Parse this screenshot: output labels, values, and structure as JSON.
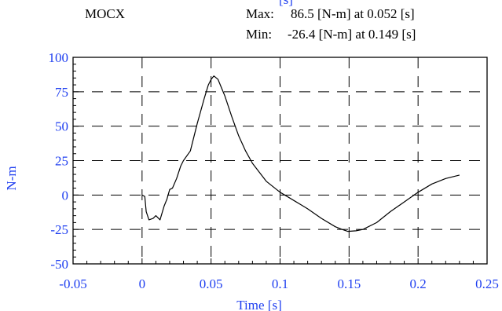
{
  "chart_data": {
    "type": "line",
    "title": "MOCX",
    "cropped_top_label": "[s]",
    "xlabel": "Time [s]",
    "ylabel": "N-m",
    "xlim": [
      -0.05,
      0.25
    ],
    "ylim": [
      -50,
      100
    ],
    "x_ticks": [
      -0.05,
      0,
      0.05,
      0.1,
      0.15,
      0.2,
      0.25
    ],
    "x_tick_labels": [
      "-0.05",
      "0",
      "0.05",
      "0.1",
      "0.15",
      "0.2",
      "0.25"
    ],
    "y_ticks": [
      -50,
      -25,
      0,
      25,
      50,
      75,
      100
    ],
    "y_tick_labels": [
      "-50",
      "-25",
      "0",
      "25",
      "50",
      "75",
      "100"
    ],
    "grid": "dashed",
    "stats": {
      "max_label": "Max:",
      "max_text": "86.5 [N-m] at 0.052 [s]",
      "min_label": "Min:",
      "min_text": "-26.4 [N-m] at 0.149 [s]"
    },
    "series": [
      {
        "color": "#000000",
        "x": [
          0,
          0.002,
          0.003,
          0.005,
          0.008,
          0.01,
          0.013,
          0.016,
          0.018,
          0.02,
          0.022,
          0.025,
          0.028,
          0.03,
          0.035,
          0.04,
          0.045,
          0.048,
          0.05,
          0.052,
          0.055,
          0.06,
          0.065,
          0.07,
          0.075,
          0.08,
          0.09,
          0.1,
          0.11,
          0.12,
          0.13,
          0.14,
          0.145,
          0.149,
          0.155,
          0.16,
          0.17,
          0.18,
          0.19,
          0.2,
          0.21,
          0.22,
          0.23
        ],
        "y": [
          0,
          -1,
          -12,
          -18,
          -17,
          -15,
          -18,
          -8,
          -3,
          4,
          5,
          12,
          21,
          25,
          32,
          52,
          70,
          80,
          84,
          86.5,
          84,
          72,
          57,
          43,
          32,
          23,
          10,
          2,
          -4,
          -10,
          -17,
          -23,
          -25,
          -26.4,
          -26,
          -25,
          -20,
          -12,
          -5,
          2,
          8,
          12,
          14.5
        ]
      }
    ]
  },
  "colors": {
    "axis_text": "#1f3ff0",
    "curve": "#000000",
    "frame": "#000000"
  }
}
